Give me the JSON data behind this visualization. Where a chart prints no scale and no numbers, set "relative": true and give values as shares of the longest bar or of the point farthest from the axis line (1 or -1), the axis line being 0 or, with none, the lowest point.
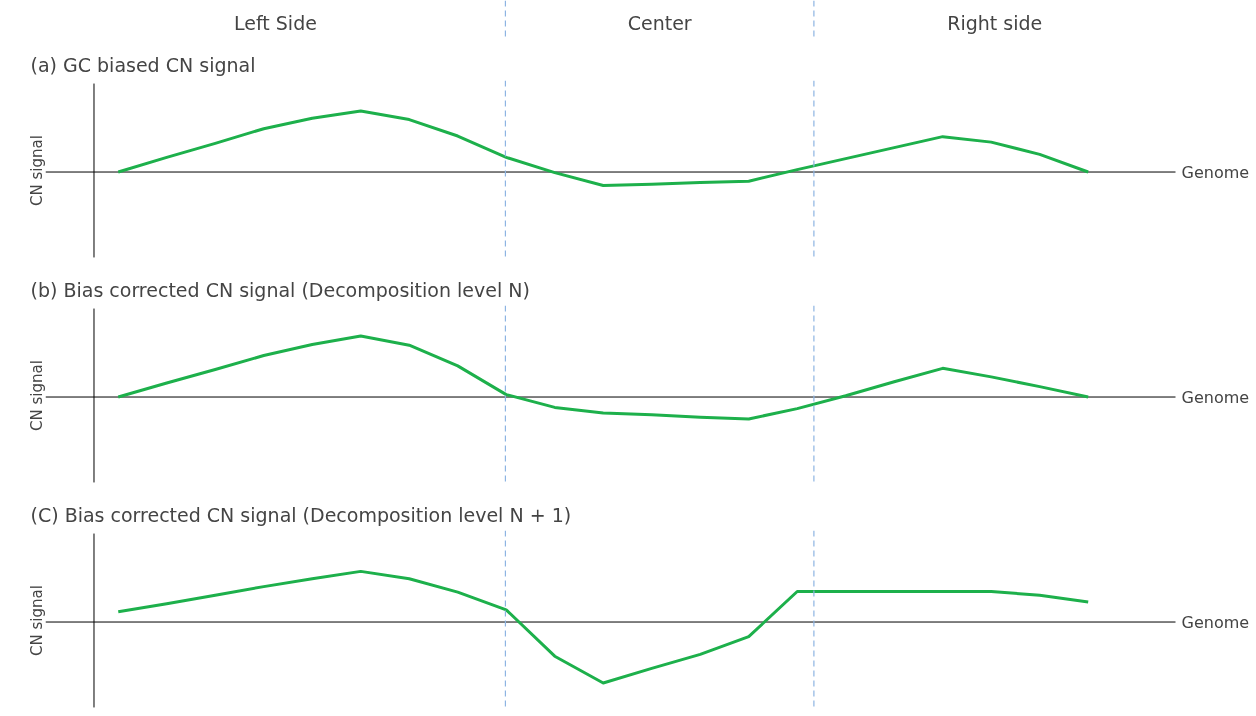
{
  "chart_data": [
    {
      "type": "line",
      "title": "(a)  GC biased  CN signal",
      "ylabel": "CN signal",
      "xlabel": "Genome",
      "relative": true,
      "grid": false,
      "marker": "none",
      "line_style": "solid",
      "categories": [
        null,
        null,
        null,
        null,
        null,
        null,
        null,
        null,
        null,
        null,
        null,
        null,
        null,
        null,
        null,
        null,
        null,
        null,
        null,
        null,
        null
      ],
      "series": [
        {
          "color": "#1db04b",
          "values": [
            0,
            0.24,
            0.47,
            0.71,
            0.88,
            1,
            0.86,
            0.59,
            0.24,
            -0.01,
            -0.22,
            -0.2,
            -0.17,
            -0.15,
            0.04,
            0.22,
            0.4,
            0.58,
            0.49,
            0.29,
            0
          ]
        }
      ],
      "annotations": [
        "Left Side",
        "Center",
        "Right side"
      ]
    },
    {
      "type": "line",
      "title": "(b)  Bias corrected CN signal (Decomposition  level N)",
      "ylabel": "CN signal",
      "xlabel": "Genome",
      "relative": true,
      "grid": false,
      "marker": "none",
      "line_style": "solid",
      "categories": [
        null,
        null,
        null,
        null,
        null,
        null,
        null,
        null,
        null,
        null,
        null,
        null,
        null,
        null,
        null,
        null,
        null,
        null,
        null,
        null,
        null
      ],
      "series": [
        {
          "color": "#1db04b",
          "values": [
            0,
            0.23,
            0.45,
            0.68,
            0.86,
            1,
            0.85,
            0.51,
            0.04,
            -0.17,
            -0.26,
            -0.29,
            -0.33,
            -0.36,
            -0.19,
            0.02,
            0.25,
            0.47,
            0.33,
            0.17,
            0
          ]
        }
      ]
    },
    {
      "type": "line",
      "title": "(C)  Bias corrected CN signal (Decomposition  level N + 1)",
      "ylabel": "CN signal",
      "xlabel": "Genome",
      "relative": true,
      "grid": false,
      "marker": "none",
      "line_style": "solid",
      "categories": [
        null,
        null,
        null,
        null,
        null,
        null,
        null,
        null,
        null,
        null,
        null,
        null,
        null,
        null,
        null,
        null,
        null,
        null,
        null,
        null,
        null
      ],
      "series": [
        {
          "color": "#1db04b",
          "values": [
            0.17,
            0.3,
            0.44,
            0.58,
            0.71,
            0.83,
            0.71,
            0.49,
            0.2,
            -0.56,
            -1,
            -0.76,
            -0.53,
            -0.24,
            0.5,
            0.5,
            0.5,
            0.5,
            0.5,
            0.44,
            0.33
          ]
        }
      ]
    }
  ]
}
